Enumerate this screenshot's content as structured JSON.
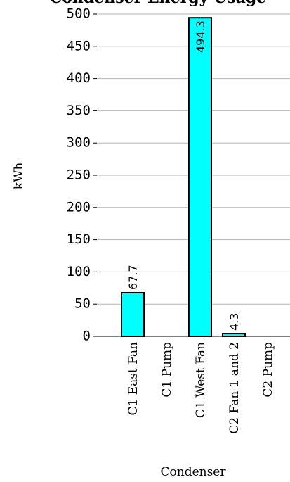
{
  "chart_data": {
    "type": "bar",
    "title": "Condenser Energy Usage",
    "xlabel": "Condenser",
    "ylabel": "kWh",
    "ylim": [
      0,
      500
    ],
    "yticks": [
      0,
      50,
      100,
      150,
      200,
      250,
      300,
      350,
      400,
      450,
      500
    ],
    "categories": [
      "C1 East Fan",
      "C1 Pump",
      "C1 West Fan",
      "C2 Fan 1 and 2",
      "C2 Pump"
    ],
    "values": [
      67.7,
      0,
      494.3,
      4.3,
      0
    ],
    "data_labels": [
      "67.7",
      "",
      "494.3",
      "4.3",
      ""
    ],
    "bar_color": "#00FFFF",
    "grid": true
  }
}
